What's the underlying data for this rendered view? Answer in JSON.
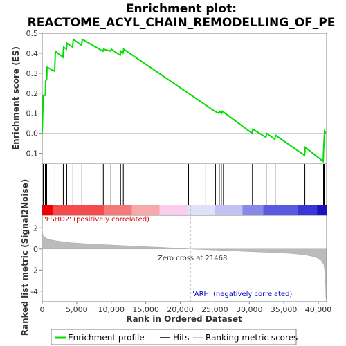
{
  "chart_data": {
    "type": "line",
    "title_line1": "Enrichment plot:",
    "title_line2": "REACTOME_ACYL_CHAIN_REMODELLING_OF_PE",
    "es_panel": {
      "ylabel": "Enrichment score (ES)",
      "ylim": [
        -0.15,
        0.5
      ],
      "yticks": [
        "0.5",
        "0.4",
        "0.3",
        "0.2",
        "0.1",
        "0.0",
        "-0.1"
      ],
      "ytick_values": [
        0.5,
        0.4,
        0.3,
        0.2,
        0.1,
        0.0,
        -0.1
      ],
      "color": "#00dd00",
      "series": {
        "name": "Enrichment profile",
        "points": [
          [
            0,
            0
          ],
          [
            150,
            0.19
          ],
          [
            450,
            0.19
          ],
          [
            500,
            0.26
          ],
          [
            650,
            0.27
          ],
          [
            700,
            0.33
          ],
          [
            1800,
            0.31
          ],
          [
            1900,
            0.41
          ],
          [
            3000,
            0.38
          ],
          [
            3100,
            0.43
          ],
          [
            3500,
            0.42
          ],
          [
            3600,
            0.45
          ],
          [
            4400,
            0.43
          ],
          [
            4500,
            0.47
          ],
          [
            5700,
            0.44
          ],
          [
            5800,
            0.47
          ],
          [
            8800,
            0.41
          ],
          [
            8900,
            0.42
          ],
          [
            9900,
            0.41
          ],
          [
            10000,
            0.42
          ],
          [
            11300,
            0.39
          ],
          [
            11400,
            0.41
          ],
          [
            11700,
            0.4
          ],
          [
            11800,
            0.42
          ],
          [
            25000,
            0.11
          ],
          [
            25600,
            0.1
          ],
          [
            25700,
            0.11
          ],
          [
            26000,
            0.1
          ],
          [
            26100,
            0.11
          ],
          [
            30400,
            0.0
          ],
          [
            30500,
            0.02
          ],
          [
            32400,
            -0.02
          ],
          [
            32500,
            0.0
          ],
          [
            33700,
            -0.03
          ],
          [
            33800,
            -0.01
          ],
          [
            38000,
            -0.11
          ],
          [
            38100,
            -0.07
          ],
          [
            40700,
            -0.14
          ],
          [
            40800,
            -0.06
          ],
          [
            40900,
            0.01
          ],
          [
            41100,
            0.0
          ]
        ]
      }
    },
    "hits": [
      150,
      450,
      650,
      1850,
      3050,
      3550,
      4450,
      5750,
      8850,
      9950,
      11350,
      11750,
      20700,
      21200,
      23700,
      25100,
      25650,
      25950,
      26250,
      30450,
      32450,
      33750,
      38050,
      40750,
      40850
    ],
    "heat_segments": [
      {
        "start": 0,
        "end": 1500,
        "color": "#ee0000"
      },
      {
        "start": 1500,
        "end": 9000,
        "color": "#f44c4c"
      },
      {
        "start": 9000,
        "end": 13000,
        "color": "#f47a7a"
      },
      {
        "start": 13000,
        "end": 17000,
        "color": "#f7a8a8"
      },
      {
        "start": 17000,
        "end": 21000,
        "color": "#f8cdee"
      },
      {
        "start": 21000,
        "end": 25000,
        "color": "#e0e0f8"
      },
      {
        "start": 25000,
        "end": 29000,
        "color": "#c2c2f0"
      },
      {
        "start": 29000,
        "end": 32000,
        "color": "#8888e8"
      },
      {
        "start": 32000,
        "end": 37000,
        "color": "#5a5ae0"
      },
      {
        "start": 37000,
        "end": 39800,
        "color": "#3838d8"
      },
      {
        "start": 39800,
        "end": 41200,
        "color": "#2010c0"
      }
    ],
    "rank_panel": {
      "ylabel_line1": "Ranked list metric (Signal2Noise)",
      "ylim": [
        -5,
        3.2
      ],
      "yticks": [
        "2",
        "0",
        "-2",
        "-4"
      ],
      "ytick_values": [
        2,
        0,
        -2,
        -4
      ],
      "color": "#bbbbbb",
      "points": [
        [
          0,
          1.9
        ],
        [
          100,
          1.3
        ],
        [
          500,
          1.05
        ],
        [
          1000,
          0.9
        ],
        [
          2000,
          0.78
        ],
        [
          4000,
          0.6
        ],
        [
          7000,
          0.47
        ],
        [
          10000,
          0.38
        ],
        [
          13000,
          0.28
        ],
        [
          17000,
          0.16
        ],
        [
          21468,
          0.0
        ],
        [
          25000,
          -0.1
        ],
        [
          29000,
          -0.22
        ],
        [
          33000,
          -0.33
        ],
        [
          36000,
          -0.42
        ],
        [
          38000,
          -0.55
        ],
        [
          39500,
          -0.75
        ],
        [
          40300,
          -1.0
        ],
        [
          40800,
          -1.5
        ],
        [
          41000,
          -2.5
        ],
        [
          41100,
          -4.7
        ],
        [
          41150,
          -4.8
        ]
      ],
      "positive_label": "'FSHD2' (positively correlated)",
      "negative_label": "'ARH' (negatively correlated)",
      "zero_cross_label": "Zero cross at 21468",
      "zero_cross": 21468
    },
    "xlabel": "Rank in Ordered Dataset",
    "xlim": [
      0,
      41200
    ],
    "xticks": [
      "0",
      "5,000",
      "10,000",
      "15,000",
      "20,000",
      "25,000",
      "30,000",
      "35,000",
      "40,000"
    ],
    "xtick_values": [
      0,
      5000,
      10000,
      15000,
      20000,
      25000,
      30000,
      35000,
      40000
    ]
  },
  "legend": {
    "items": [
      {
        "label": "Enrichment profile",
        "color": "#00dd00"
      },
      {
        "label": "Hits",
        "color": "#000000"
      },
      {
        "label": "Ranking metric scores",
        "color": "#bbbbbb"
      }
    ]
  }
}
